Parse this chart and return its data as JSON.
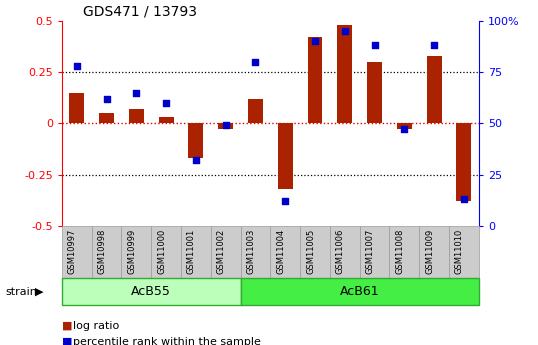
{
  "title": "GDS471 / 13793",
  "samples": [
    "GSM10997",
    "GSM10998",
    "GSM10999",
    "GSM11000",
    "GSM11001",
    "GSM11002",
    "GSM11003",
    "GSM11004",
    "GSM11005",
    "GSM11006",
    "GSM11007",
    "GSM11008",
    "GSM11009",
    "GSM11010"
  ],
  "log_ratio": [
    0.15,
    0.05,
    0.07,
    0.03,
    -0.17,
    -0.03,
    0.12,
    -0.32,
    0.42,
    0.48,
    0.3,
    -0.03,
    0.33,
    -0.38
  ],
  "percentile": [
    78,
    62,
    65,
    60,
    32,
    49,
    80,
    12,
    90,
    95,
    88,
    47,
    88,
    13
  ],
  "groups": [
    {
      "label": "AcB55",
      "start": 0,
      "end": 6,
      "color": "#bbffbb"
    },
    {
      "label": "AcB61",
      "start": 6,
      "end": 14,
      "color": "#44ee44"
    }
  ],
  "bar_color": "#aa2200",
  "dot_color": "#0000cc",
  "ylim_left": [
    -0.5,
    0.5
  ],
  "ylim_right": [
    0,
    100
  ],
  "yticks_left": [
    -0.5,
    -0.25,
    0.0,
    0.25,
    0.5
  ],
  "yticks_right": [
    0,
    25,
    50,
    75,
    100
  ],
  "hline_dotted": [
    0.25,
    -0.25
  ],
  "hline_zero_color": "#dd0000",
  "bar_width": 0.5,
  "dot_size": 25,
  "legend_items": [
    "log ratio",
    "percentile rank within the sample"
  ],
  "legend_colors": [
    "#aa2200",
    "#0000cc"
  ],
  "strain_label": "strain",
  "sample_box_color": "#cccccc",
  "sample_box_edge": "#999999",
  "group_edge_color": "#33aa33",
  "title_fontsize": 10,
  "tick_fontsize": 8,
  "sample_fontsize": 6,
  "legend_fontsize": 8
}
